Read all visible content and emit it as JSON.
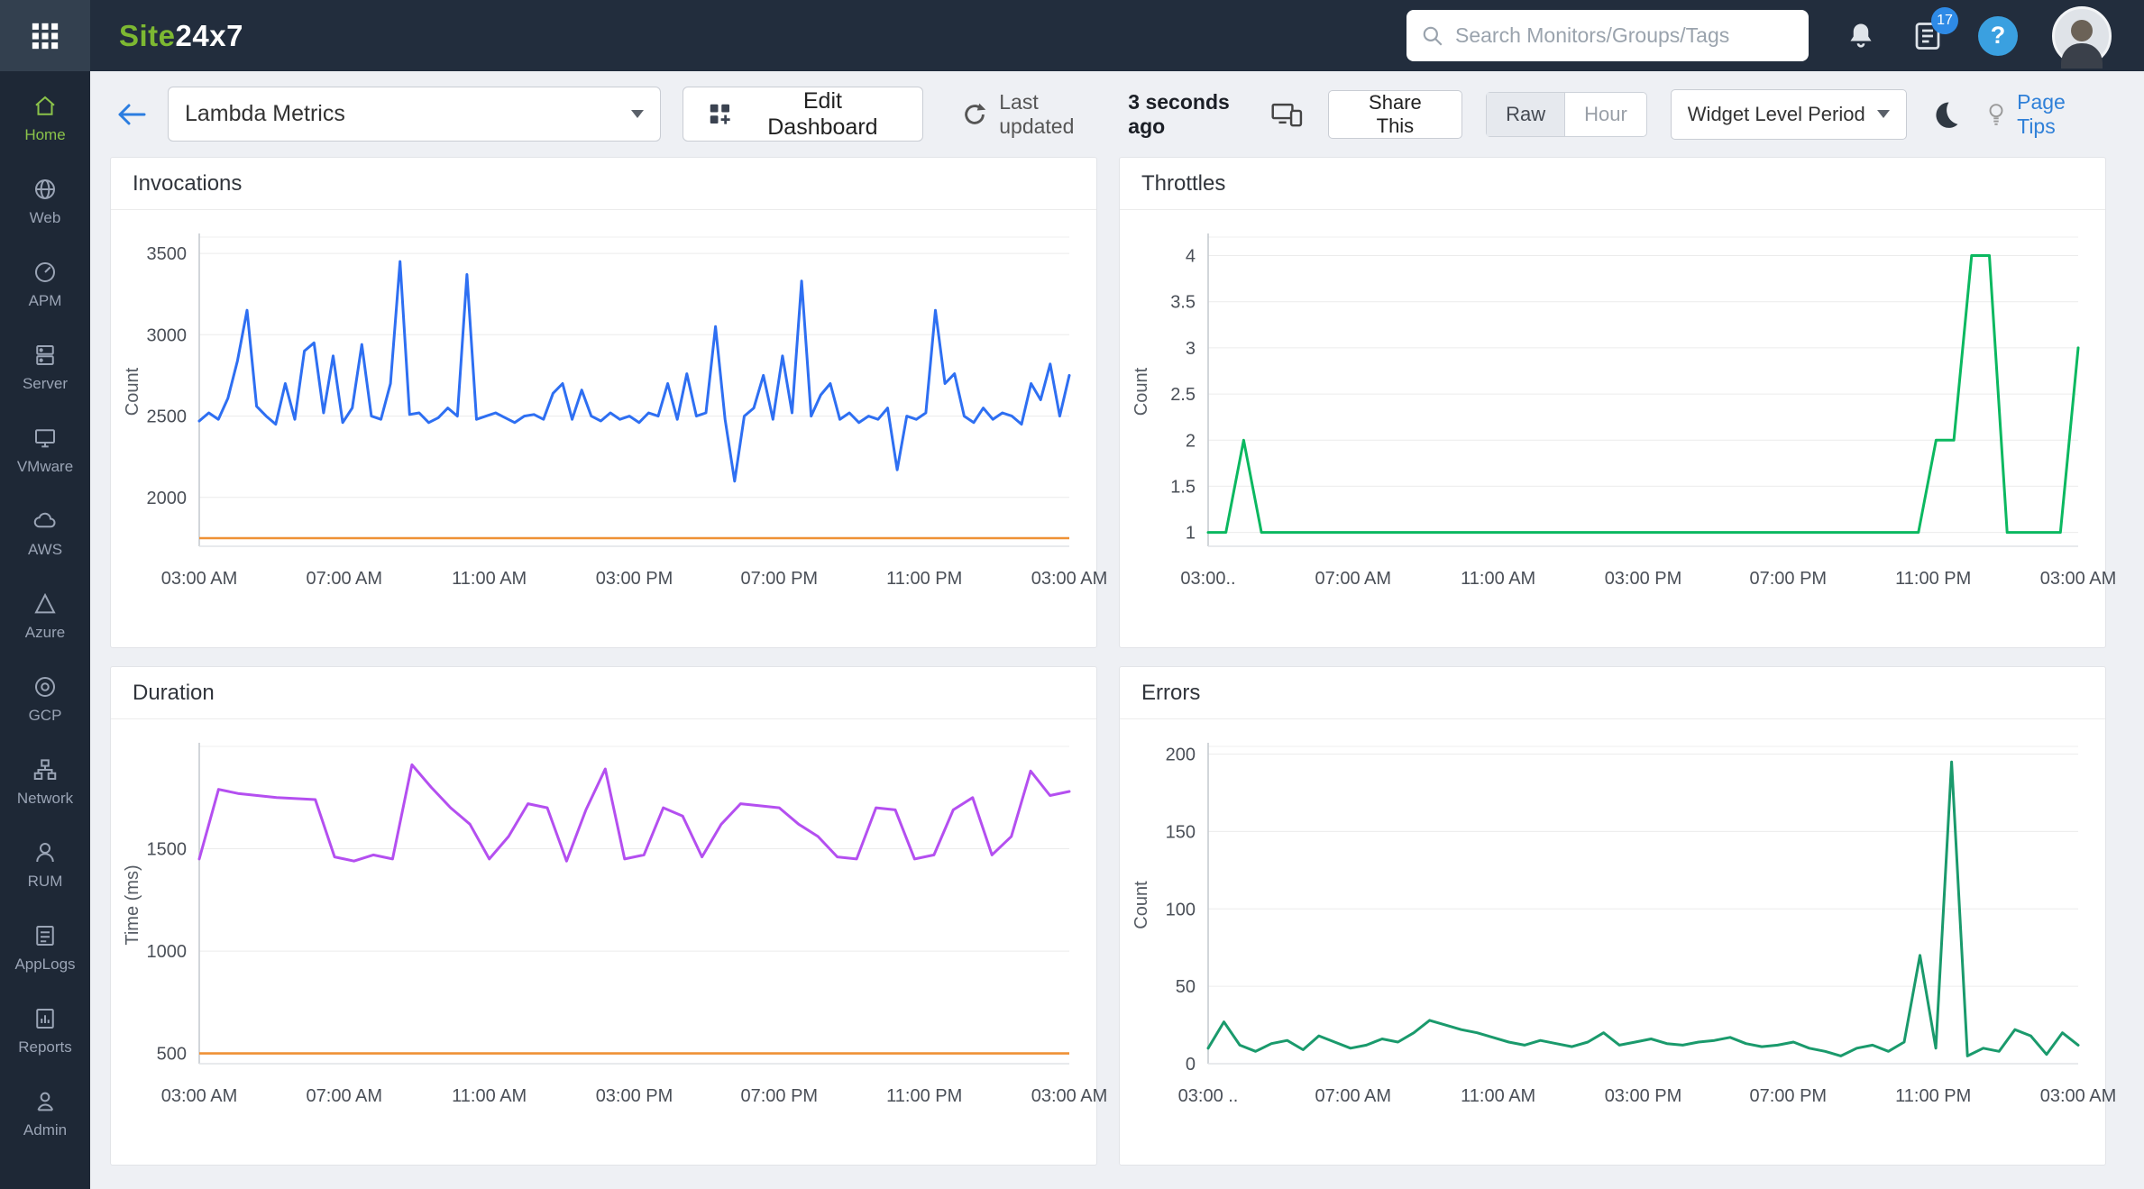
{
  "topbar": {
    "logo_green": "Site",
    "logo_white": "24x7",
    "search_placeholder": "Search Monitors/Groups/Tags",
    "notification_count": "17",
    "help_label": "?"
  },
  "icons": {
    "topbar": [
      "apps-grid-icon",
      "search-icon",
      "bell-icon",
      "tasks-icon",
      "help-icon",
      "avatar"
    ],
    "subheader": [
      "back-arrow-icon",
      "dashboard-grid-icon",
      "refresh-icon",
      "devices-icon",
      "moon-icon",
      "bulb-icon"
    ]
  },
  "sidebar": {
    "items": [
      {
        "label": "Home",
        "active": true
      },
      {
        "label": "Web",
        "active": false
      },
      {
        "label": "APM",
        "active": false
      },
      {
        "label": "Server",
        "active": false
      },
      {
        "label": "VMware",
        "active": false
      },
      {
        "label": "AWS",
        "active": false
      },
      {
        "label": "Azure",
        "active": false
      },
      {
        "label": "GCP",
        "active": false
      },
      {
        "label": "Network",
        "active": false
      },
      {
        "label": "RUM",
        "active": false
      },
      {
        "label": "AppLogs",
        "active": false
      },
      {
        "label": "Reports",
        "active": false
      },
      {
        "label": "Admin",
        "active": false
      }
    ]
  },
  "subheader": {
    "dashboard_name": "Lambda Metrics",
    "edit_dashboard": "Edit Dashboard",
    "last_updated_label": "Last updated",
    "last_updated_value": "3 seconds ago",
    "share_this": "Share This",
    "toggle_raw": "Raw",
    "toggle_hour": "Hour",
    "widget_level_period": "Widget Level Period",
    "page_tips": "Page Tips"
  },
  "chart_data": [
    {
      "type": "line",
      "title": "Invocations",
      "ylabel": "Count",
      "color": "#2e6ff2",
      "threshold": 1750,
      "threshold_color": "#ef9135",
      "ylim": [
        1700,
        3600
      ],
      "yticks": [
        2000,
        2500,
        3000,
        3500
      ],
      "xticks": [
        "03:00 AM",
        "07:00 AM",
        "11:00 AM",
        "03:00 PM",
        "07:00 PM",
        "11:00 PM",
        "03:00 AM"
      ],
      "values": [
        2470,
        2520,
        2480,
        2610,
        2840,
        3150,
        2560,
        2500,
        2450,
        2700,
        2480,
        2900,
        2950,
        2520,
        2870,
        2460,
        2550,
        2940,
        2500,
        2480,
        2700,
        3450,
        2510,
        2520,
        2460,
        2490,
        2550,
        2500,
        3370,
        2480,
        2500,
        2520,
        2490,
        2460,
        2500,
        2510,
        2480,
        2640,
        2700,
        2480,
        2660,
        2500,
        2470,
        2520,
        2480,
        2500,
        2460,
        2520,
        2500,
        2700,
        2480,
        2760,
        2500,
        2520,
        3050,
        2480,
        2100,
        2500,
        2550,
        2750,
        2480,
        2870,
        2520,
        3330,
        2500,
        2630,
        2700,
        2480,
        2520,
        2460,
        2500,
        2480,
        2550,
        2170,
        2500,
        2480,
        2520,
        3150,
        2700,
        2760,
        2500,
        2460,
        2550,
        2480,
        2520,
        2500,
        2450,
        2700,
        2600,
        2820,
        2500,
        2750
      ]
    },
    {
      "type": "line",
      "title": "Throttles",
      "ylabel": "Count",
      "color": "#0bb860",
      "threshold": null,
      "threshold_color": null,
      "ylim": [
        0.85,
        4.2
      ],
      "yticks": [
        1,
        1.5,
        2,
        2.5,
        3,
        3.5,
        4
      ],
      "xticks": [
        "03:00..",
        "07:00 AM",
        "11:00 AM",
        "03:00 PM",
        "07:00 PM",
        "11:00 PM",
        "03:00 AM"
      ],
      "values": [
        1,
        1,
        2,
        1,
        1,
        1,
        1,
        1,
        1,
        1,
        1,
        1,
        1,
        1,
        1,
        1,
        1,
        1,
        1,
        1,
        1,
        1,
        1,
        1,
        1,
        1,
        1,
        1,
        1,
        1,
        1,
        1,
        1,
        1,
        1,
        1,
        1,
        1,
        1,
        1,
        1,
        2,
        2,
        4,
        4,
        1,
        1,
        1,
        1,
        3
      ]
    },
    {
      "type": "line",
      "title": "Duration",
      "ylabel": "Time (ms)",
      "color": "#b44ff0",
      "threshold": 500,
      "threshold_color": "#ef9135",
      "ylim": [
        450,
        2000
      ],
      "yticks": [
        500,
        1000,
        1500
      ],
      "xticks": [
        "03:00 AM",
        "07:00 AM",
        "11:00 AM",
        "03:00 PM",
        "07:00 PM",
        "11:00 PM",
        "03:00 AM"
      ],
      "values": [
        1450,
        1790,
        1770,
        1760,
        1750,
        1745,
        1740,
        1460,
        1440,
        1470,
        1450,
        1910,
        1800,
        1700,
        1620,
        1450,
        1560,
        1720,
        1700,
        1440,
        1690,
        1890,
        1450,
        1470,
        1700,
        1660,
        1460,
        1620,
        1720,
        1710,
        1700,
        1620,
        1560,
        1460,
        1450,
        1700,
        1690,
        1450,
        1470,
        1690,
        1750,
        1470,
        1560,
        1880,
        1760,
        1780
      ]
    },
    {
      "type": "line",
      "title": "Errors",
      "ylabel": "Count",
      "color": "#1a9a6c",
      "threshold": null,
      "threshold_color": null,
      "ylim": [
        0,
        205
      ],
      "yticks": [
        0,
        50,
        100,
        150,
        200
      ],
      "xticks": [
        "03:00 ..",
        "07:00 AM",
        "11:00 AM",
        "03:00 PM",
        "07:00 PM",
        "11:00 PM",
        "03:00 AM"
      ],
      "values": [
        10,
        27,
        12,
        8,
        13,
        15,
        9,
        18,
        14,
        10,
        12,
        16,
        14,
        20,
        28,
        25,
        22,
        20,
        17,
        14,
        12,
        15,
        13,
        11,
        14,
        20,
        12,
        14,
        16,
        13,
        12,
        14,
        15,
        17,
        13,
        11,
        12,
        14,
        10,
        8,
        5,
        10,
        12,
        8,
        14,
        70,
        10,
        195,
        5,
        10,
        8,
        22,
        18,
        6,
        20,
        12
      ]
    }
  ]
}
